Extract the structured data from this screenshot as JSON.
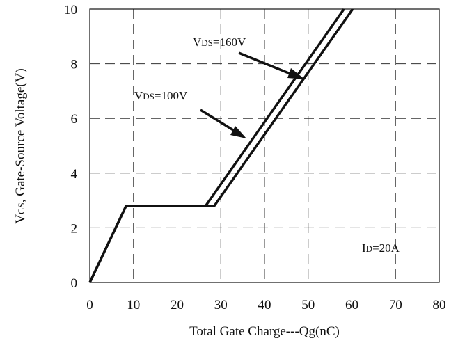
{
  "chart_data": {
    "type": "line",
    "xlabel": "Total Gate Charge---Qg(nC)",
    "ylabel": "VGS, Gate-Source Voltage(V)",
    "ylabel_parts": {
      "main": "V",
      "sub": "GS",
      "rest": ", Gate-Source Voltage(V)"
    },
    "xlim": [
      0,
      80
    ],
    "ylim": [
      0,
      10
    ],
    "x_ticks": [
      0,
      10,
      20,
      30,
      40,
      50,
      60,
      70,
      80
    ],
    "y_ticks": [
      0,
      2,
      4,
      6,
      8,
      10
    ],
    "grid": true,
    "series": [
      {
        "name": "VDS=100V",
        "label": {
          "main": "V",
          "sub": "DS",
          "rest": "=100V"
        },
        "x": [
          0,
          8.3,
          26.5,
          58.2
        ],
        "y": [
          0,
          2.8,
          2.8,
          10
        ]
      },
      {
        "name": "VDS=160V",
        "label": {
          "main": "V",
          "sub": "DS",
          "rest": "=160V"
        },
        "x": [
          0,
          8.3,
          28.5,
          60.2
        ],
        "y": [
          0,
          2.8,
          2.8,
          10
        ]
      }
    ],
    "annotations": [
      {
        "label": {
          "main": "I",
          "sub": "D",
          "rest": "=20A"
        }
      }
    ]
  }
}
